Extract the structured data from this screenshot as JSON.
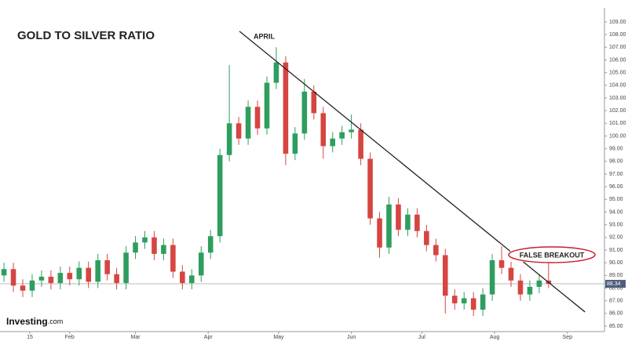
{
  "chart_data": {
    "type": "candlestick",
    "title": "GOLD TO SILVER RATIO",
    "brand": "Investing",
    "brand_suffix": ".com",
    "annotations": [
      "APRIL",
      "FALSE BREAKOUT"
    ],
    "x": [
      4,
      8,
      12,
      16,
      20,
      24,
      28,
      32,
      36,
      40,
      44,
      48,
      52,
      56,
      60,
      64,
      68,
      72,
      76,
      80,
      84,
      88,
      92,
      96,
      100,
      104,
      108,
      112,
      116,
      120,
      124,
      128,
      132,
      136,
      140,
      144,
      148,
      152,
      156,
      160,
      164,
      168,
      172,
      176,
      180,
      184,
      188,
      192,
      196,
      200,
      204,
      208,
      212,
      216,
      220,
      224,
      228,
      232,
      236
    ],
    "open": [
      89.0,
      89.5,
      88.2,
      87.8,
      88.6,
      88.9,
      88.4,
      89.2,
      88.7,
      89.6,
      88.5,
      90.2,
      89.1,
      88.4,
      90.8,
      91.6,
      92.0,
      90.7,
      91.4,
      89.3,
      88.4,
      89.0,
      90.8,
      92.1,
      98.5,
      101.0,
      99.8,
      102.3,
      100.6,
      104.2,
      105.8,
      98.6,
      100.2,
      103.5,
      101.8,
      99.2,
      99.8,
      100.3,
      100.5,
      98.2,
      93.5,
      91.2,
      94.6,
      92.6,
      93.8,
      92.5,
      91.4,
      90.6,
      87.4,
      86.8,
      87.2,
      86.3,
      87.5,
      90.2,
      89.6,
      88.6,
      87.5,
      88.1,
      88.6
    ],
    "high": [
      90.0,
      90.0,
      88.7,
      89.1,
      89.4,
      89.4,
      89.7,
      89.7,
      90.1,
      90.1,
      90.7,
      90.7,
      89.6,
      91.3,
      92.1,
      92.5,
      92.5,
      91.9,
      91.9,
      89.8,
      89.5,
      91.3,
      92.6,
      99.0,
      105.6,
      101.5,
      102.8,
      102.8,
      104.7,
      107.0,
      106.3,
      100.7,
      104.5,
      104.0,
      102.3,
      100.3,
      100.8,
      101.7,
      101.0,
      98.7,
      94.0,
      95.2,
      95.1,
      94.3,
      94.3,
      93.0,
      91.9,
      91.1,
      87.9,
      87.7,
      87.7,
      88.0,
      90.7,
      91.3,
      90.1,
      89.1,
      88.6,
      89.1,
      90.0
    ],
    "low": [
      88.5,
      87.7,
      87.3,
      87.3,
      88.1,
      87.9,
      87.9,
      88.2,
      88.2,
      88.0,
      88.0,
      88.6,
      87.9,
      87.9,
      90.3,
      91.1,
      90.2,
      90.2,
      88.8,
      87.9,
      87.9,
      88.5,
      90.3,
      91.6,
      98.0,
      99.3,
      99.3,
      100.1,
      100.1,
      103.7,
      97.7,
      98.1,
      99.7,
      101.3,
      98.2,
      98.7,
      99.3,
      99.8,
      97.7,
      93.0,
      90.4,
      90.7,
      92.1,
      92.1,
      92.0,
      90.9,
      90.1,
      86.0,
      86.3,
      86.3,
      85.8,
      85.8,
      87.0,
      89.1,
      88.1,
      87.0,
      87.0,
      87.6,
      88.0
    ],
    "close": [
      89.5,
      88.2,
      87.8,
      88.6,
      88.9,
      88.4,
      89.2,
      88.7,
      89.6,
      88.5,
      90.2,
      89.1,
      88.4,
      90.8,
      91.6,
      92.0,
      90.7,
      91.4,
      89.3,
      88.4,
      89.0,
      90.8,
      92.1,
      98.5,
      101.0,
      99.8,
      102.3,
      100.6,
      104.2,
      105.8,
      98.6,
      100.2,
      103.5,
      101.8,
      99.2,
      99.8,
      100.3,
      100.5,
      98.2,
      93.5,
      91.2,
      94.6,
      92.6,
      93.8,
      92.5,
      91.4,
      90.6,
      87.4,
      86.8,
      87.2,
      86.3,
      87.5,
      90.2,
      89.6,
      88.6,
      87.5,
      88.1,
      88.6,
      88.34
    ],
    "up_color": "#2e9e5e",
    "down_color": "#d64541",
    "last_price": 88.34,
    "trendline": {
      "x": [
        104.3,
        251.5
      ],
      "y": [
        108.26,
        86.12
      ]
    },
    "xlim": [
      2.3,
      259.8
    ],
    "xticks": [
      {
        "value": 15,
        "label": "15"
      },
      {
        "value": 32,
        "label": "Feb"
      },
      {
        "value": 60,
        "label": "Mar"
      },
      {
        "value": 91,
        "label": "Apr"
      },
      {
        "value": 121,
        "label": "May"
      },
      {
        "value": 152,
        "label": "Jun"
      },
      {
        "value": 182,
        "label": "Jul"
      },
      {
        "value": 213,
        "label": "Aug"
      },
      {
        "value": 244,
        "label": "Sep"
      }
    ],
    "ylim": [
      84.57,
      109.8
    ],
    "yticks": [
      {
        "value": 85,
        "label": "85.00"
      },
      {
        "value": 86,
        "label": "86.00"
      },
      {
        "value": 87,
        "label": "87.00"
      },
      {
        "value": 88,
        "label": "88.00"
      },
      {
        "value": 89,
        "label": "89.00"
      },
      {
        "value": 90,
        "label": "90.00"
      },
      {
        "value": 91,
        "label": "91.00"
      },
      {
        "value": 92,
        "label": "92.00"
      },
      {
        "value": 93,
        "label": "93.00"
      },
      {
        "value": 94,
        "label": "94.00"
      },
      {
        "value": 95,
        "label": "95.00"
      },
      {
        "value": 96,
        "label": "96.00"
      },
      {
        "value": 97,
        "label": "97.00"
      },
      {
        "value": 98,
        "label": "98.00"
      },
      {
        "value": 99,
        "label": "99.00"
      },
      {
        "value": 100,
        "label": "100.00"
      },
      {
        "value": 101,
        "label": "101.00"
      },
      {
        "value": 102,
        "label": "102.00"
      },
      {
        "value": 103,
        "label": "103.00"
      },
      {
        "value": 104,
        "label": "104.00"
      },
      {
        "value": 105,
        "label": "105.00"
      },
      {
        "value": 106,
        "label": "106.00"
      },
      {
        "value": 107,
        "label": "107.00"
      },
      {
        "value": 108,
        "label": "108.00"
      },
      {
        "value": 109,
        "label": "109.00"
      }
    ]
  }
}
